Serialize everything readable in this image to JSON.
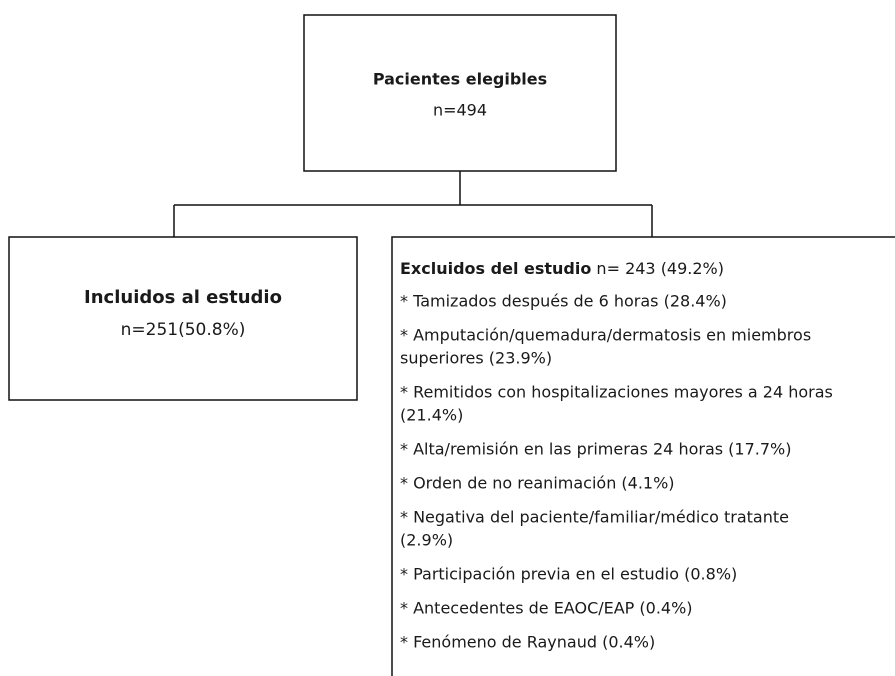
{
  "nodes": [
    {
      "label": "Pacientes elegibles",
      "count": "n=494"
    },
    {
      "label": "Incluidos al estudio",
      "count": "n=251(50.8%)"
    },
    {
      "label": "Excluidos del estudio",
      "count": " n= 243 (49.2%)",
      "items": [
        [
          "* Tamizados después de 6 horas (28.4%)"
        ],
        [
          "* Amputación/quemadura/dermatosis en miembros",
          "superiores (23.9%)"
        ],
        [
          "* Remitidos con hospitalizaciones mayores a 24 horas",
          "(21.4%)"
        ],
        [
          "* Alta/remisión en las primeras 24 horas (17.7%)"
        ],
        [
          "* Orden de no reanimación (4.1%)"
        ],
        [
          "* Negativa del paciente/familiar/médico tratante",
          "(2.9%)"
        ],
        [
          "* Participación previa en el estudio (0.8%)"
        ],
        [
          "* Antecedentes de EAOC/EAP (0.4%)"
        ],
        [
          "* Fenómeno de Raynaud (0.4%)"
        ]
      ]
    }
  ]
}
